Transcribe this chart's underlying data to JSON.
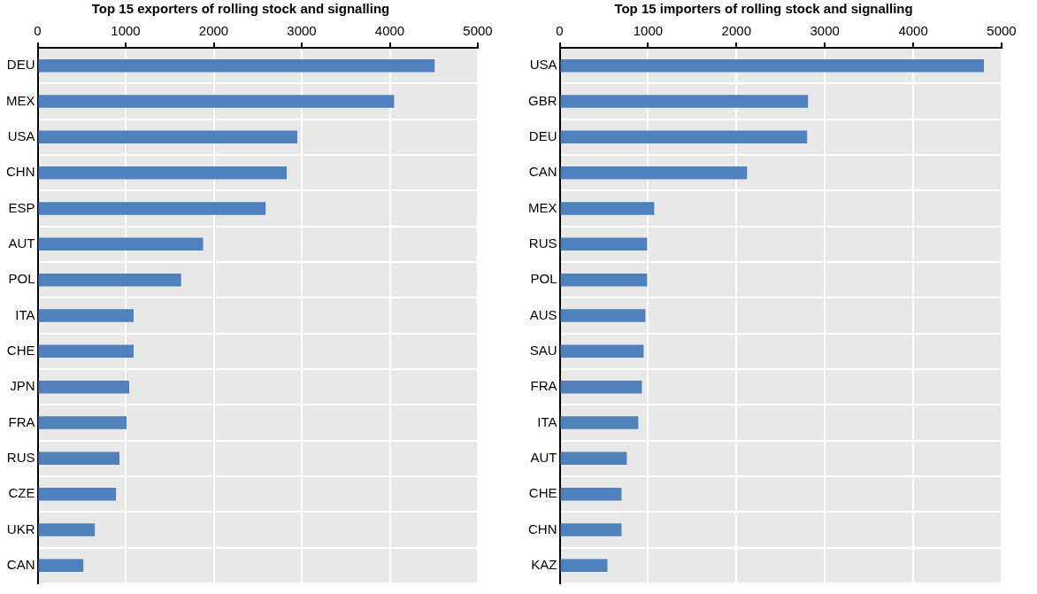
{
  "chart_data": [
    {
      "type": "bar",
      "orientation": "horizontal",
      "title": "Top 15 exporters of rolling stock and signalling",
      "categories": [
        "DEU",
        "MEX",
        "USA",
        "CHN",
        "ESP",
        "AUT",
        "POL",
        "ITA",
        "CHE",
        "JPN",
        "FRA",
        "RUS",
        "CZE",
        "UKR",
        "CAN"
      ],
      "values": [
        4510,
        4050,
        2950,
        2830,
        2590,
        1880,
        1630,
        1090,
        1090,
        1040,
        1010,
        930,
        890,
        650,
        520
      ],
      "color": "#4f81bd",
      "xlim": [
        0,
        5000
      ],
      "xticks": [
        0,
        1000,
        2000,
        3000,
        4000,
        5000
      ],
      "grid": true
    },
    {
      "type": "bar",
      "orientation": "horizontal",
      "title": "Top 15 importers of rolling stock and signalling",
      "categories": [
        "USA",
        "GBR",
        "DEU",
        "CAN",
        "MEX",
        "RUS",
        "POL",
        "AUS",
        "SAU",
        "FRA",
        "ITA",
        "AUT",
        "CHE",
        "CHN",
        "KAZ"
      ],
      "values": [
        4800,
        2810,
        2800,
        2120,
        1070,
        990,
        990,
        970,
        950,
        930,
        890,
        760,
        700,
        700,
        540
      ],
      "color": "#4f81bd",
      "xlim": [
        0,
        5000
      ],
      "xticks": [
        0,
        1000,
        2000,
        3000,
        4000,
        5000
      ],
      "grid": true
    }
  ]
}
